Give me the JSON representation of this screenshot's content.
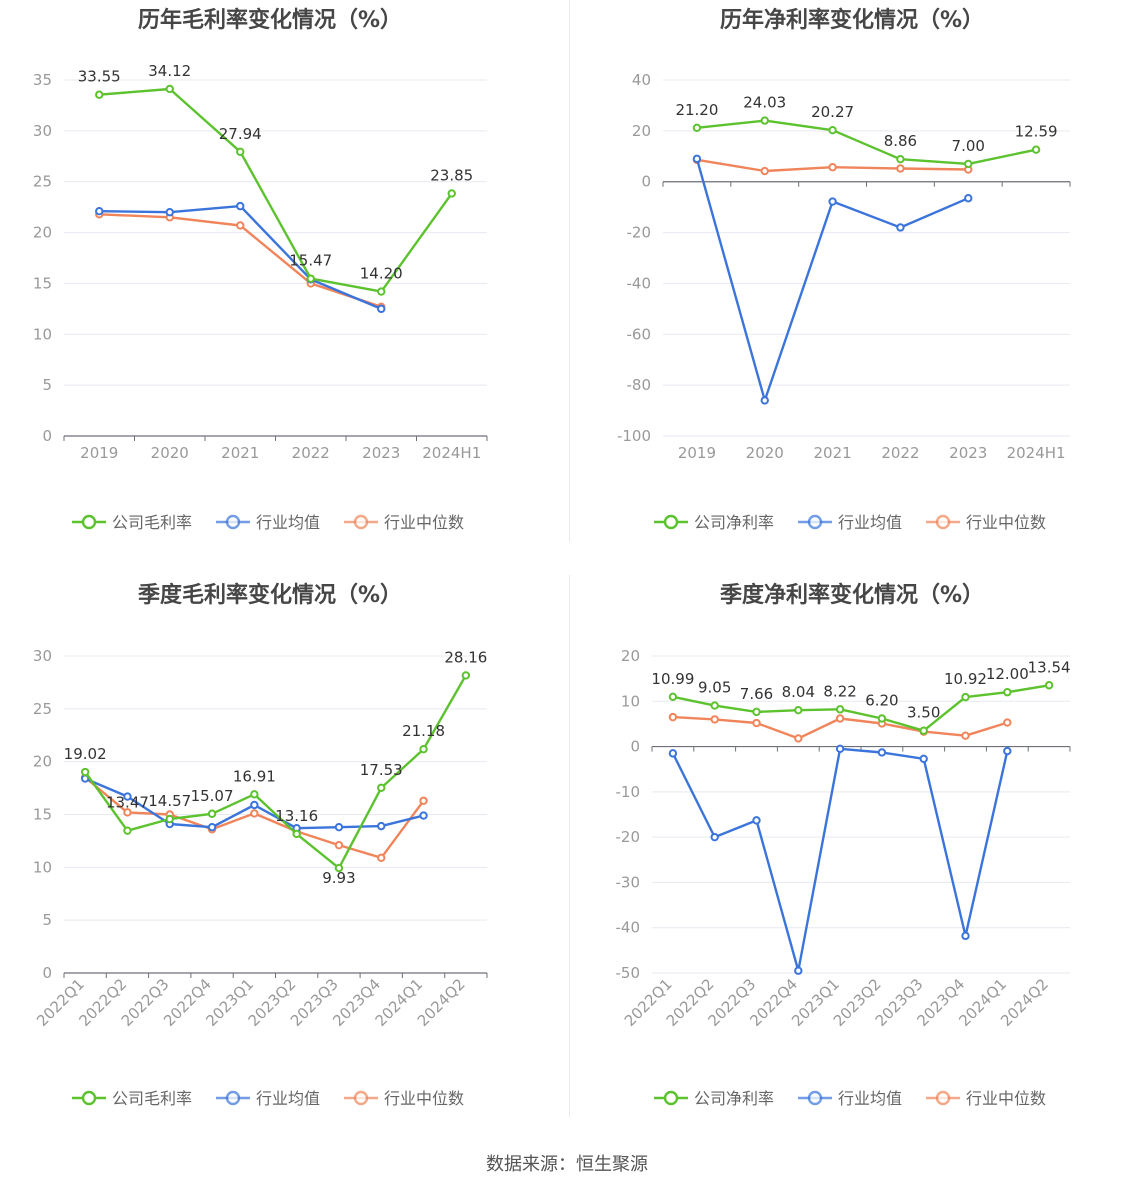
{
  "source": "数据来源：恒生聚源",
  "legend_labels": {
    "industry_avg": "行业均值",
    "industry_median": "行业中位数"
  },
  "colors": {
    "company": "#5cc22e",
    "avg": "#3b74db",
    "median": "#f0845a",
    "axis": "#6e7079",
    "grid": "#e6e9f0",
    "tick": "#999999",
    "title": "#464646",
    "label": "#333333"
  },
  "chart_data": [
    {
      "id": "annual-gross",
      "type": "line",
      "title": "历年毛利率变化情况（%）",
      "categories": [
        "2019",
        "2020",
        "2021",
        "2022",
        "2023",
        "2024H1"
      ],
      "ylim": [
        0,
        35
      ],
      "yticks": [
        0,
        5,
        10,
        15,
        20,
        25,
        30,
        35
      ],
      "x_label_rotate": false,
      "legend_position": "bottom",
      "series": [
        {
          "name": "公司毛利率",
          "key": "company",
          "values": [
            33.55,
            34.12,
            27.94,
            15.47,
            14.2,
            23.85
          ],
          "labels": [
            "33.55",
            "34.12",
            "27.94",
            "15.47",
            "14.20",
            "23.85"
          ]
        },
        {
          "name": "行业均值",
          "key": "avg",
          "values": [
            22.1,
            22.0,
            22.6,
            15.4,
            12.5,
            null
          ]
        },
        {
          "name": "行业中位数",
          "key": "median",
          "values": [
            21.8,
            21.5,
            20.7,
            15.0,
            12.7,
            null
          ]
        }
      ]
    },
    {
      "id": "annual-net",
      "type": "line",
      "title": "历年净利率变化情况（%）",
      "categories": [
        "2019",
        "2020",
        "2021",
        "2022",
        "2023",
        "2024H1"
      ],
      "ylim": [
        -100,
        40
      ],
      "yticks": [
        -100,
        -80,
        -60,
        -40,
        -20,
        0,
        20,
        40
      ],
      "x_label_rotate": false,
      "legend_position": "bottom",
      "series": [
        {
          "name": "公司净利率",
          "key": "company",
          "values": [
            21.2,
            24.03,
            20.27,
            8.86,
            7.0,
            12.59
          ],
          "labels": [
            "21.20",
            "24.03",
            "20.27",
            "8.86",
            "7.00",
            "12.59"
          ]
        },
        {
          "name": "行业均值",
          "key": "avg",
          "values": [
            9.0,
            -86.0,
            -7.8,
            -18.0,
            -6.5,
            null
          ]
        },
        {
          "name": "行业中位数",
          "key": "median",
          "values": [
            8.6,
            4.2,
            5.7,
            5.2,
            4.8,
            null
          ]
        }
      ]
    },
    {
      "id": "quarterly-gross",
      "type": "line",
      "title": "季度毛利率变化情况（%）",
      "categories": [
        "2022Q1",
        "2022Q2",
        "2022Q3",
        "2022Q4",
        "2023Q1",
        "2023Q2",
        "2023Q3",
        "2023Q4",
        "2024Q1",
        "2024Q2"
      ],
      "ylim": [
        0,
        30
      ],
      "yticks": [
        0,
        5,
        10,
        15,
        20,
        25,
        30
      ],
      "x_label_rotate": true,
      "legend_position": "bottom",
      "series": [
        {
          "name": "公司毛利率",
          "key": "company",
          "values": [
            19.02,
            13.47,
            14.57,
            15.07,
            16.91,
            13.16,
            9.93,
            17.53,
            21.18,
            28.16
          ],
          "labels": [
            "19.02",
            "13.47",
            "14.57",
            "15.07",
            "16.91",
            "13.16",
            "9.93",
            "17.53",
            "21.18",
            "28.16"
          ]
        },
        {
          "name": "行业均值",
          "key": "avg",
          "values": [
            18.4,
            16.7,
            14.1,
            13.8,
            15.9,
            13.7,
            13.8,
            13.9,
            14.9,
            null
          ]
        },
        {
          "name": "行业中位数",
          "key": "median",
          "values": [
            18.5,
            15.2,
            15.0,
            13.6,
            15.1,
            13.4,
            12.1,
            10.9,
            16.3,
            null
          ]
        }
      ]
    },
    {
      "id": "quarterly-net",
      "type": "line",
      "title": "季度净利率变化情况（%）",
      "categories": [
        "2022Q1",
        "2022Q2",
        "2022Q3",
        "2022Q4",
        "2023Q1",
        "2023Q2",
        "2023Q3",
        "2023Q4",
        "2024Q1",
        "2024Q2"
      ],
      "ylim": [
        -50,
        20
      ],
      "yticks": [
        -50,
        -40,
        -30,
        -20,
        -10,
        0,
        10,
        20
      ],
      "x_label_rotate": true,
      "legend_position": "bottom",
      "series": [
        {
          "name": "公司净利率",
          "key": "company",
          "values": [
            10.99,
            9.05,
            7.66,
            8.04,
            8.22,
            6.2,
            3.5,
            10.92,
            12.0,
            13.54
          ],
          "labels": [
            "10.99",
            "9.05",
            "7.66",
            "8.04",
            "8.22",
            "6.20",
            "3.50",
            "10.92",
            "12.00",
            "13.54"
          ]
        },
        {
          "name": "行业均值",
          "key": "avg",
          "values": [
            -1.5,
            -20.0,
            -16.3,
            -49.5,
            -0.5,
            -1.3,
            -2.7,
            -41.8,
            -1.0,
            null
          ]
        },
        {
          "name": "行业中位数",
          "key": "median",
          "values": [
            6.5,
            6.0,
            5.2,
            1.8,
            6.2,
            5.1,
            3.3,
            2.4,
            5.3,
            null
          ]
        }
      ]
    }
  ]
}
